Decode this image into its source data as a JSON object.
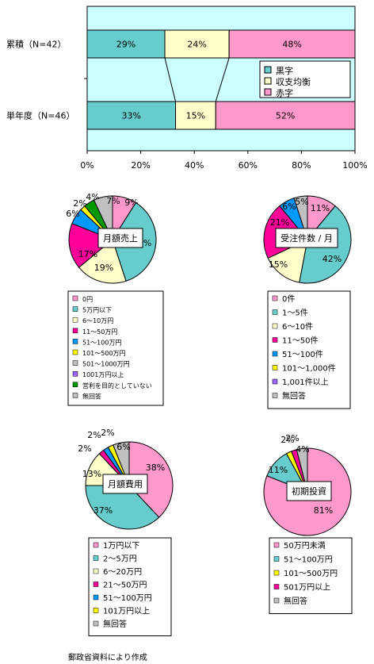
{
  "source_note": "郵政省資料により作成",
  "colors": {
    "plot_bg": "#ccffff",
    "teal": "#66cccc",
    "cream": "#ffffcc",
    "pink": "#ff99cc",
    "magenta": "#ff0099",
    "blue": "#0099ff",
    "yellow": "#ffff00",
    "purple": "#9966ff",
    "green": "#009900",
    "gray": "#c0c0c0",
    "lavender": "#ccccff",
    "lightgreen": "#ccffcc"
  },
  "chart_data": [
    {
      "type": "bar",
      "stacked": true,
      "orientation": "horizontal",
      "categories": [
        "累積（N=42）",
        "単年度（N=46）"
      ],
      "series": [
        {
          "name": "黒字",
          "values": [
            29,
            33
          ],
          "labels": [
            "29%",
            "33%"
          ]
        },
        {
          "name": "収支均衡",
          "values": [
            24,
            15
          ],
          "labels": [
            "24%",
            "15%"
          ]
        },
        {
          "name": "赤字",
          "values": [
            48,
            52
          ],
          "labels": [
            "48%",
            "52%"
          ]
        }
      ],
      "xlim": [
        0,
        100
      ],
      "xticks": [
        "0%",
        "20%",
        "40%",
        "60%",
        "80%",
        "100%"
      ],
      "legend": "right"
    },
    {
      "type": "pie",
      "title": "月額売上",
      "values": [
        9,
        36,
        19,
        17,
        6,
        2,
        4,
        7
      ],
      "labels": [
        "9%",
        "36%",
        "19%",
        "17%",
        "6%",
        "2%",
        "4%",
        "7%"
      ],
      "colors": [
        "#ff99cc",
        "#66cccc",
        "#ffffcc",
        "#ff0099",
        "#0099ff",
        "#ffff00",
        "#009900",
        "#c0c0c0"
      ],
      "legend": [
        "0円",
        "5万円以下",
        "6〜10万円",
        "11〜50万円",
        "51〜100万円",
        "101〜500万円",
        "501〜1000万円",
        "1001万円以上",
        "営利を目的としていない",
        "無回答"
      ],
      "legend_colors": [
        "#ff99cc",
        "#66cccc",
        "#ffffcc",
        "#ff0099",
        "#0099ff",
        "#ffff00",
        "#c0c0c0",
        "#9966ff",
        "#009900",
        "#c0c0c0"
      ]
    },
    {
      "type": "pie",
      "title": "受注件数 / 月",
      "values": [
        11,
        42,
        15,
        21,
        6,
        5
      ],
      "labels": [
        "11%",
        "42%",
        "15%",
        "21%",
        "6%",
        "5%"
      ],
      "colors": [
        "#ff99cc",
        "#66cccc",
        "#ffffcc",
        "#ff0099",
        "#0099ff",
        "#c0c0c0"
      ],
      "legend": [
        "0件",
        "1〜5件",
        "6〜10件",
        "11〜50件",
        "51〜100件",
        "101〜1,000件",
        "1,001件以上",
        "無回答"
      ],
      "legend_colors": [
        "#ff99cc",
        "#66cccc",
        "#ffffcc",
        "#ff0099",
        "#0099ff",
        "#ffff00",
        "#9966ff",
        "#c0c0c0"
      ]
    },
    {
      "type": "pie",
      "title": "月額費用",
      "values": [
        38,
        37,
        13,
        2,
        2,
        2,
        6
      ],
      "labels": [
        "38%",
        "37%",
        "13%",
        "2%",
        "2%",
        "2%",
        "6%"
      ],
      "colors": [
        "#ff99cc",
        "#66cccc",
        "#ffffcc",
        "#ff0099",
        "#0099ff",
        "#ffff00",
        "#c0c0c0"
      ],
      "legend": [
        "1万円以下",
        "2〜5万円",
        "6〜20万円",
        "21〜50万円",
        "51〜100万円",
        "101万円以上",
        "無回答"
      ],
      "legend_colors": [
        "#ff99cc",
        "#66cccc",
        "#ffffcc",
        "#ff0099",
        "#0099ff",
        "#ffff00",
        "#c0c0c0"
      ]
    },
    {
      "type": "pie",
      "title": "初期投資",
      "values": [
        81,
        11,
        2,
        2,
        4
      ],
      "labels": [
        "81%",
        "11%",
        "2%",
        "2%",
        "4%"
      ],
      "colors": [
        "#ff99cc",
        "#66cccc",
        "#ffff00",
        "#ff0099",
        "#c0c0c0"
      ],
      "legend": [
        "50万円未満",
        "51〜100万円",
        "101〜500万円",
        "501万円以上",
        "無回答"
      ],
      "legend_colors": [
        "#ff99cc",
        "#66cccc",
        "#ffff00",
        "#ff0099",
        "#c0c0c0"
      ]
    }
  ]
}
